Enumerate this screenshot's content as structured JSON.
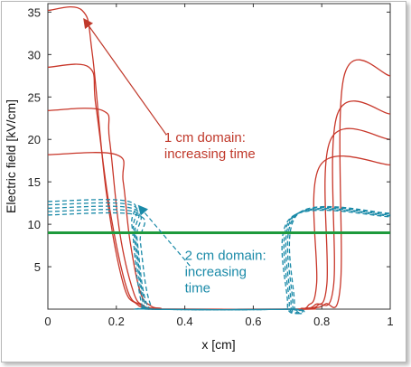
{
  "colors": {
    "red_series": "#c8372a",
    "blue_series": "#1a8aa8",
    "threshold": "#1e9a3c",
    "axis": "#333333",
    "annotation_red": "#c0392b",
    "annotation_blue": "#1a8aa8"
  },
  "chart_data": {
    "type": "line",
    "title": "",
    "xlabel": "x [cm]",
    "ylabel": "Electric field [kV/cm]",
    "xlim": [
      0,
      1
    ],
    "ylim": [
      0,
      36
    ],
    "grid": false,
    "x_ticks": [
      0,
      0.2,
      0.4,
      0.6,
      0.8,
      1
    ],
    "x_tick_labels": [
      "0",
      "0.2",
      "0.4",
      "0.6",
      "0.8",
      "1"
    ],
    "y_ticks": [
      5,
      10,
      15,
      20,
      25,
      30,
      35
    ],
    "y_tick_labels": [
      "5",
      "10",
      "15",
      "20",
      "25",
      "30",
      "35"
    ],
    "threshold": {
      "y": 9,
      "style": "solid"
    },
    "groups": [
      {
        "style": "solid",
        "color_key": "red_series",
        "series": [
          {
            "x": [
              0,
              0.1,
              0.13,
              0.17,
              0.22,
              0.26,
              0.29,
              0.32,
              0.74,
              0.77,
              0.81,
              0.855,
              0.865,
              1
            ],
            "y": [
              35.2,
              35.2,
              30,
              14,
              3,
              0.6,
              0.1,
              0,
              0,
              0.1,
              0.6,
              3,
              27.4,
              27.5
            ]
          },
          {
            "x": [
              0,
              0.12,
              0.14,
              0.18,
              0.23,
              0.27,
              0.3,
              0.33,
              0.73,
              0.76,
              0.79,
              0.835,
              0.845,
              1
            ],
            "y": [
              28.5,
              28.5,
              24,
              12,
              2.5,
              0.5,
              0.1,
              0,
              0,
              0.1,
              0.5,
              3,
              22.9,
              23.0
            ]
          },
          {
            "x": [
              0,
              0.16,
              0.18,
              0.21,
              0.25,
              0.28,
              0.31,
              0.34,
              0.73,
              0.75,
              0.78,
              0.815,
              0.825,
              1
            ],
            "y": [
              23.4,
              23.4,
              20,
              9,
              2,
              0.4,
              0.1,
              0,
              0,
              0.1,
              0.5,
              3,
              19.9,
              20.0
            ]
          },
          {
            "x": [
              0,
              0.2,
              0.22,
              0.24,
              0.27,
              0.3,
              0.33,
              0.35,
              0.72,
              0.74,
              0.76,
              0.785,
              0.795,
              1
            ],
            "y": [
              18.2,
              18.2,
              15,
              8,
              2,
              0.4,
              0.1,
              0,
              0,
              0.1,
              0.4,
              3,
              16.9,
              17.0
            ]
          }
        ]
      },
      {
        "style": "dashed",
        "color_key": "blue_series",
        "series": [
          {
            "x": [
              0,
              0.235,
              0.245,
              0.26,
              0.275,
              0.29,
              0.695,
              0.7,
              0.71,
              1
            ],
            "y": [
              12.7,
              12.7,
              10,
              4,
              0.5,
              0,
              0,
              0.5,
              10.8,
              10.9
            ]
          },
          {
            "x": [
              0,
              0.24,
              0.25,
              0.265,
              0.28,
              0.295,
              0.7,
              0.705,
              0.715,
              1
            ],
            "y": [
              12.3,
              12.3,
              9.5,
              4,
              0.5,
              0,
              0,
              0.5,
              10.9,
              11.0
            ]
          },
          {
            "x": [
              0,
              0.245,
              0.255,
              0.27,
              0.285,
              0.3,
              0.705,
              0.71,
              0.72,
              1
            ],
            "y": [
              11.9,
              11.9,
              9,
              3.5,
              0.5,
              0,
              0,
              0.5,
              11.0,
              11.1
            ]
          },
          {
            "x": [
              0,
              0.25,
              0.26,
              0.275,
              0.29,
              0.305,
              0.71,
              0.715,
              0.725,
              1
            ],
            "y": [
              11.5,
              11.5,
              8.5,
              3,
              0.5,
              0,
              0,
              0.5,
              11.1,
              11.2
            ]
          },
          {
            "x": [
              0,
              0.26,
              0.27,
              0.285,
              0.3,
              0.31,
              0.715,
              0.72,
              0.73,
              1
            ],
            "y": [
              11.1,
              11.1,
              8,
              3,
              0.5,
              0,
              0,
              0.5,
              11.2,
              11.3
            ]
          }
        ]
      }
    ],
    "annotations": [
      {
        "lines": [
          "1 cm domain:",
          "increasing time"
        ],
        "color_key": "annotation_red",
        "text_at": [
          0.34,
          19.7
        ],
        "arrow_from": [
          0.345,
          20.6
        ],
        "arrow_to": [
          0.105,
          34.2
        ]
      },
      {
        "lines": [
          "2 cm domain:",
          "increasing",
          "time"
        ],
        "color_key": "annotation_blue",
        "text_at": [
          0.4,
          5.8
        ],
        "arrow_from": [
          0.415,
          5.1
        ],
        "arrow_to": [
          0.265,
          12.2
        ]
      }
    ]
  }
}
